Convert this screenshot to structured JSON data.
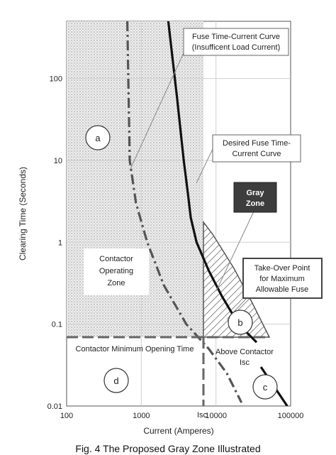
{
  "chart_data": {
    "type": "line",
    "xscale": "log",
    "yscale": "log",
    "xlim": [
      100,
      100000
    ],
    "ylim": [
      0.01,
      500
    ],
    "xlabel": "Current (Amperes)",
    "ylabel": "Clearing Time (Seconds)",
    "x_ticks": [
      "100",
      "1000",
      "10000",
      "100000"
    ],
    "y_ticks": [
      "100",
      "10",
      "1",
      "0.1",
      "0.01"
    ],
    "grid": true,
    "series": [
      {
        "name": "Fuse Time-Current Curve (Insufficent Load Current)",
        "style": "dash-dot",
        "x": [
          650,
          700,
          850,
          1200,
          2000,
          4000,
          8000,
          14000,
          22000
        ],
        "y": [
          500,
          10,
          3,
          1,
          0.3,
          0.1,
          0.05,
          0.025,
          0.011
        ]
      },
      {
        "name": "Desired Fuse Time-Current Curve",
        "style": "solid",
        "x": [
          2300,
          3000,
          3700,
          4200,
          4600,
          5500,
          8000,
          12000,
          20000,
          35000
        ],
        "y": [
          500,
          60,
          10,
          4,
          2,
          1,
          0.45,
          0.22,
          0.1,
          0.06
        ]
      },
      {
        "name": "",
        "style": "solid",
        "x": [
          40000,
          90000
        ],
        "y": [
          0.03,
          0.01
        ]
      }
    ],
    "reference_lines": [
      {
        "type": "horizontal",
        "y": 0.07,
        "style": "dashed",
        "label": "Contactor Minimum Opening Time"
      },
      {
        "type": "vertical",
        "x": 6000,
        "style": "dashed",
        "label": "Isc"
      }
    ],
    "regions": [
      {
        "id": "a",
        "label": "Contactor Operating Zone",
        "fill": "dotted",
        "x": [
          100,
          6000
        ],
        "y": [
          0.07,
          500
        ]
      },
      {
        "id": "b",
        "label": "Gray Zone",
        "fill": "hatched"
      },
      {
        "id": "c",
        "label": "Above Contactor Isc"
      },
      {
        "id": "d",
        "label": ""
      }
    ],
    "annotations": [
      "Fuse Time-Current Curve (Insufficent Load Current)",
      "Desired Fuse Time-Current Curve",
      "Gray Zone",
      "Take-Over Point for Maximum Allowable Fuse",
      "Contactor Operating Zone",
      "Contactor Minimum Opening Time",
      "Above Contactor Isc"
    ]
  },
  "labels": {
    "fuse_insufficient": [
      "Fuse Time-Current Curve",
      "(Insufficent Load Current)"
    ],
    "desired_fuse": [
      "Desired Fuse Time-",
      "Current Curve"
    ],
    "gray_zone": [
      "Gray",
      "Zone"
    ],
    "takeover": [
      "Take-Over Point",
      "for Maximum",
      "Allowable Fuse"
    ],
    "operating_zone": [
      "Contactor",
      "Operating",
      "Zone"
    ],
    "min_opening": "Contactor Minimum Opening Time",
    "above_isc": [
      "Above Contactor",
      "Isc"
    ],
    "isc": "Isc",
    "circle_a": "a",
    "circle_b": "b",
    "circle_c": "c",
    "circle_d": "d"
  },
  "caption": "Fig. 4 The Proposed Gray Zone Illustrated"
}
